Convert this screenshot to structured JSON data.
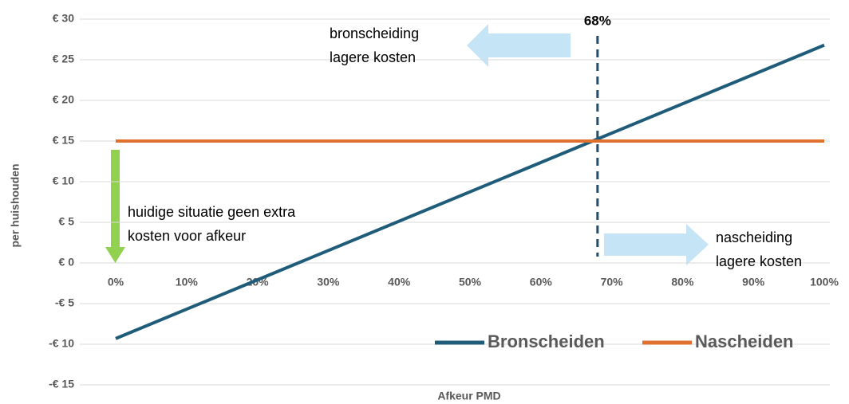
{
  "chart_data": {
    "type": "line",
    "ylabel": "per huishouden",
    "xlabel": "Afkeur PMD",
    "xlim": [
      0,
      100
    ],
    "xticks": [
      {
        "value": 0,
        "label": "0%"
      },
      {
        "value": 10,
        "label": "10%"
      },
      {
        "value": 20,
        "label": "20%"
      },
      {
        "value": 30,
        "label": "30%"
      },
      {
        "value": 40,
        "label": "40%"
      },
      {
        "value": 50,
        "label": "50%"
      },
      {
        "value": 60,
        "label": "60%"
      },
      {
        "value": 70,
        "label": "70%"
      },
      {
        "value": 80,
        "label": "80%"
      },
      {
        "value": 90,
        "label": "90%"
      },
      {
        "value": 100,
        "label": "100%"
      }
    ],
    "ylim": [
      -15,
      30
    ],
    "yticks": [
      {
        "value": -15,
        "label": "-€ 15"
      },
      {
        "value": -10,
        "label": "-€ 10"
      },
      {
        "value": -5,
        "label": "-€ 5"
      },
      {
        "value": 0,
        "label": "€ 0"
      },
      {
        "value": 5,
        "label": "€ 5"
      },
      {
        "value": 10,
        "label": "€ 10"
      },
      {
        "value": 15,
        "label": "€ 15"
      },
      {
        "value": 20,
        "label": "€ 20"
      },
      {
        "value": 25,
        "label": "€ 25"
      },
      {
        "value": 30,
        "label": "€ 30"
      }
    ],
    "grid": true,
    "legend": "lower right",
    "series": [
      {
        "name": "Bronscheiden",
        "color": "#1f5c7a",
        "x": [
          0,
          100
        ],
        "values": [
          -9.3,
          26.8
        ]
      },
      {
        "name": "Nascheiden",
        "color": "#e0702e",
        "x": [
          0,
          100
        ],
        "values": [
          15,
          15
        ]
      }
    ],
    "threshold": {
      "label": "68%",
      "x": 68
    },
    "notes": [
      {
        "lines": [
          "bronscheiding",
          "lagere kosten"
        ]
      },
      {
        "lines": [
          "nascheiding",
          "lagere kosten"
        ]
      },
      {
        "lines": [
          "huidige situatie geen extra",
          "kosten voor afkeur"
        ]
      }
    ]
  }
}
